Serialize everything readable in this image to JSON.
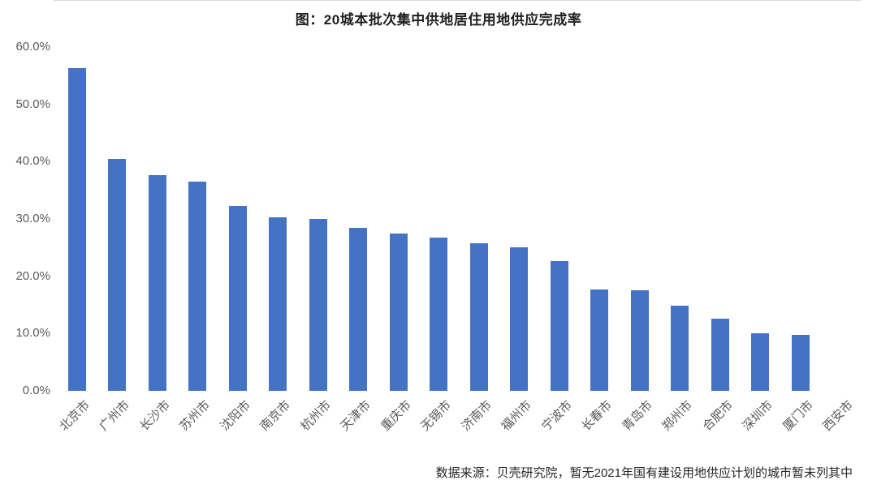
{
  "page": {
    "title": "图：20城本批次集中供地居住用地供应完成率",
    "source_note": "数据来源：贝壳研究院，暂无2021年国有建设用地供应计划的城市暂未列其中"
  },
  "colors": {
    "bar": "#4472C4",
    "axis_label": "#595959",
    "title_text": "#1F1F1F",
    "baseline": "#D9D9D9",
    "background": "#FFFFFF"
  },
  "chart_data": {
    "type": "bar",
    "title": "图：20城本批次集中供地居住用地供应完成率",
    "categories": [
      "北京市",
      "广州市",
      "长沙市",
      "苏州市",
      "沈阳市",
      "南京市",
      "杭州市",
      "天津市",
      "重庆市",
      "无锡市",
      "济南市",
      "福州市",
      "宁波市",
      "长春市",
      "青岛市",
      "郑州市",
      "合肥市",
      "深圳市",
      "厦门市",
      "西安市"
    ],
    "values": [
      56.3,
      40.5,
      37.6,
      36.5,
      32.2,
      30.3,
      30.0,
      28.4,
      27.5,
      26.7,
      25.8,
      25.1,
      22.6,
      17.7,
      17.5,
      14.9,
      12.6,
      10.0,
      9.7,
      0.0
    ],
    "unit": "%",
    "xlabel": "",
    "ylabel": "",
    "ylim": [
      0,
      60
    ],
    "ytick_step": 10,
    "ytick_labels": [
      "0.0%",
      "10.0%",
      "20.0%",
      "30.0%",
      "40.0%",
      "50.0%",
      "60.0%"
    ],
    "grid": false,
    "legend_position": "none",
    "source_note": "数据来源：贝壳研究院，暂无2021年国有建设用地供应计划的城市暂未列其中"
  }
}
